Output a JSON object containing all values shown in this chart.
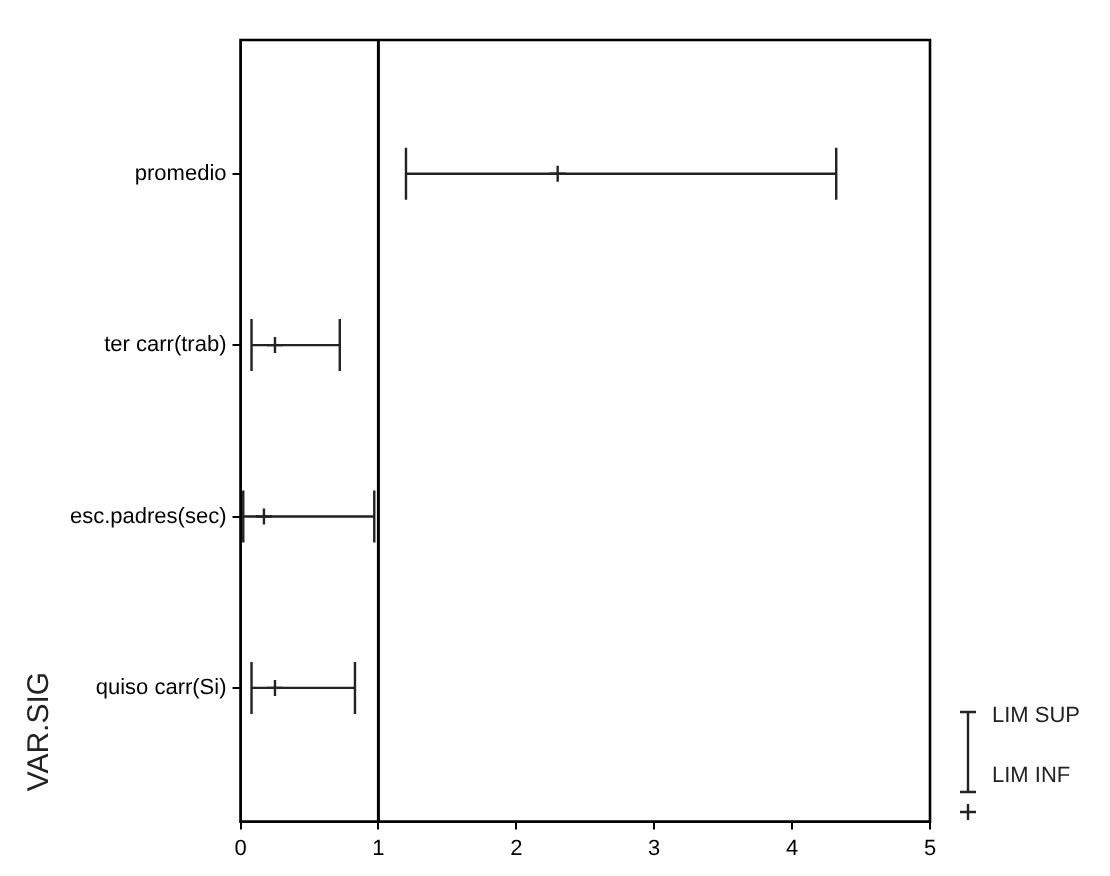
{
  "chart_data": {
    "type": "scatter",
    "orientation": "horizontal",
    "ylabel": "VAR.SIG",
    "categories": [
      "promedio",
      "ter carr(trab)",
      "esc.padres(sec)",
      "quiso carr(Si)"
    ],
    "values": [
      2.3,
      0.25,
      0.17,
      0.25
    ],
    "errors": [
      [
        1.2,
        4.32
      ],
      [
        0.08,
        0.72
      ],
      [
        0.02,
        0.97
      ],
      [
        0.08,
        0.83
      ]
    ],
    "color": "#222222",
    "marker": "cross",
    "grid": false,
    "xlim": [
      0,
      5
    ],
    "xticks": [
      0,
      1,
      2,
      3,
      4,
      5
    ],
    "ref_lines": [
      {
        "axis": "x",
        "value": 1
      }
    ],
    "annotations": [
      "LIM SUP",
      "LIM INF"
    ]
  }
}
